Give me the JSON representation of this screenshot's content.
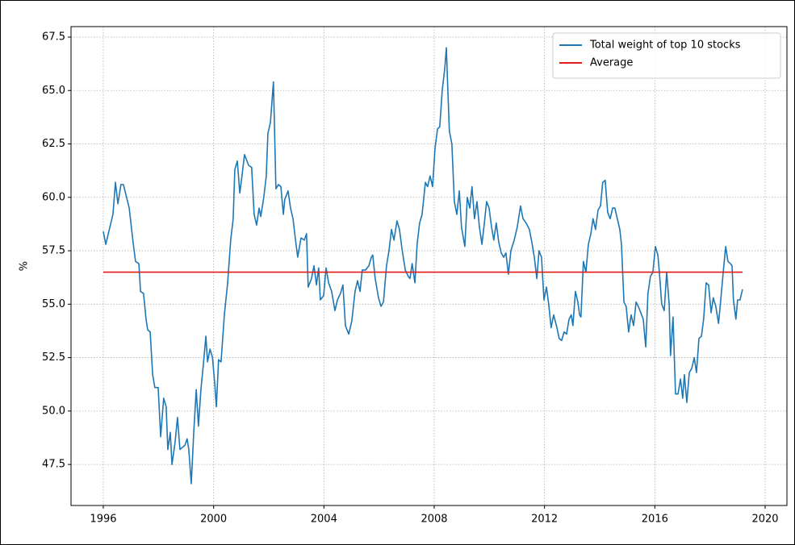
{
  "chart_data": {
    "type": "line",
    "y_label": "%",
    "xlim": [
      1994.83,
      2020.79
    ],
    "ylim": [
      45.58,
      67.99
    ],
    "xticks": [
      1996,
      2000,
      2004,
      2008,
      2012,
      2016,
      2020
    ],
    "yticks": [
      47.5,
      {
        "value": 50,
        "label": "50.0"
      },
      52.5,
      {
        "value": 55,
        "label": "55.0"
      },
      57.5,
      {
        "value": 60,
        "label": "60.0"
      },
      62.5,
      {
        "value": 65,
        "label": "65.0"
      },
      67.5
    ],
    "grid": true,
    "legend": "upper right",
    "series": [
      {
        "name": "Total weight of top 10 stocks",
        "color": "#1f77b4",
        "x": [
          1996.0,
          1996.09,
          1996.35,
          1996.44,
          1996.53,
          1996.64,
          1996.73,
          1996.94,
          1997.08,
          1997.17,
          1997.29,
          1997.35,
          1997.46,
          1997.55,
          1997.61,
          1997.7,
          1997.79,
          1997.87,
          1997.99,
          1998.08,
          1998.19,
          1998.28,
          1998.34,
          1998.43,
          1998.49,
          1998.6,
          1998.69,
          1998.78,
          1998.96,
          1999.04,
          1999.1,
          1999.19,
          1999.28,
          1999.37,
          1999.45,
          1999.54,
          1999.63,
          1999.72,
          1999.78,
          1999.87,
          1999.96,
          2000.04,
          2000.1,
          2000.18,
          2000.27,
          2000.39,
          2000.51,
          2000.62,
          2000.71,
          2000.77,
          2000.86,
          2000.95,
          2001.03,
          2001.12,
          2001.27,
          2001.38,
          2001.47,
          2001.56,
          2001.65,
          2001.71,
          2001.82,
          2001.91,
          2001.97,
          2002.06,
          2002.17,
          2002.26,
          2002.35,
          2002.44,
          2002.53,
          2002.58,
          2002.7,
          2002.79,
          2002.88,
          2002.97,
          2003.05,
          2003.17,
          2003.29,
          2003.37,
          2003.43,
          2003.55,
          2003.64,
          2003.73,
          2003.81,
          2003.87,
          2003.99,
          2004.08,
          2004.17,
          2004.28,
          2004.4,
          2004.49,
          2004.6,
          2004.69,
          2004.78,
          2004.9,
          2005.01,
          2005.13,
          2005.22,
          2005.31,
          2005.39,
          2005.51,
          2005.63,
          2005.72,
          2005.77,
          2005.86,
          2005.98,
          2006.07,
          2006.16,
          2006.27,
          2006.36,
          2006.45,
          2006.54,
          2006.65,
          2006.74,
          2006.83,
          2006.95,
          2007.06,
          2007.12,
          2007.2,
          2007.3,
          2007.38,
          2007.47,
          2007.56,
          2007.68,
          2007.76,
          2007.85,
          2007.94,
          2008.03,
          2008.12,
          2008.2,
          2008.29,
          2008.38,
          2008.44,
          2008.5,
          2008.55,
          2008.64,
          2008.73,
          2008.82,
          2008.91,
          2008.99,
          2009.11,
          2009.2,
          2009.29,
          2009.37,
          2009.46,
          2009.55,
          2009.64,
          2009.73,
          2009.81,
          2009.9,
          2009.99,
          2010.08,
          2010.16,
          2010.25,
          2010.34,
          2010.43,
          2010.52,
          2010.6,
          2010.69,
          2010.78,
          2010.9,
          2011.01,
          2011.13,
          2011.22,
          2011.33,
          2011.45,
          2011.54,
          2011.63,
          2011.72,
          2011.8,
          2011.89,
          2011.98,
          2012.07,
          2012.16,
          2012.24,
          2012.33,
          2012.45,
          2012.53,
          2012.62,
          2012.71,
          2012.8,
          2012.89,
          2012.97,
          2013.03,
          2013.12,
          2013.21,
          2013.27,
          2013.32,
          2013.41,
          2013.5,
          2013.59,
          2013.68,
          2013.76,
          2013.85,
          2013.94,
          2014.03,
          2014.11,
          2014.2,
          2014.29,
          2014.38,
          2014.47,
          2014.55,
          2014.64,
          2014.73,
          2014.79,
          2014.88,
          2014.96,
          2015.05,
          2015.14,
          2015.23,
          2015.32,
          2015.4,
          2015.49,
          2015.58,
          2015.67,
          2015.75,
          2015.84,
          2015.93,
          2016.02,
          2016.11,
          2016.17,
          2016.25,
          2016.34,
          2016.43,
          2016.52,
          2016.57,
          2016.66,
          2016.75,
          2016.84,
          2016.93,
          2017.01,
          2017.07,
          2017.16,
          2017.25,
          2017.34,
          2017.43,
          2017.51,
          2017.6,
          2017.69,
          2017.77,
          2017.86,
          2017.95,
          2018.04,
          2018.12,
          2018.21,
          2018.31,
          2018.39,
          2018.48,
          2018.57,
          2018.65,
          2018.74,
          2018.8,
          2018.85,
          2018.94,
          2019.0,
          2019.09,
          2019.18
        ],
        "values": [
          58.4,
          57.8,
          59.2,
          60.7,
          59.7,
          60.6,
          60.6,
          59.5,
          57.9,
          57.0,
          56.9,
          55.6,
          55.5,
          54.3,
          53.8,
          53.7,
          51.7,
          51.1,
          51.1,
          48.8,
          50.6,
          50.2,
          48.2,
          49.0,
          47.5,
          48.5,
          49.7,
          48.2,
          48.4,
          48.7,
          48.2,
          46.6,
          49.0,
          51.0,
          49.3,
          51.0,
          52.2,
          53.5,
          52.3,
          52.9,
          52.5,
          51.3,
          50.2,
          52.4,
          52.3,
          54.5,
          56.0,
          58.0,
          59.0,
          61.3,
          61.7,
          60.2,
          61.0,
          62.0,
          61.5,
          61.4,
          59.2,
          58.7,
          59.5,
          59.1,
          60.0,
          61.0,
          63.0,
          63.5,
          65.4,
          60.4,
          60.6,
          60.5,
          59.2,
          59.9,
          60.3,
          59.5,
          59.0,
          58.0,
          57.2,
          58.1,
          58.0,
          58.3,
          55.8,
          56.2,
          56.8,
          55.9,
          56.7,
          55.2,
          55.4,
          56.7,
          56.0,
          55.6,
          54.7,
          55.2,
          55.5,
          55.9,
          54.0,
          53.6,
          54.2,
          55.6,
          56.1,
          55.6,
          56.6,
          56.6,
          56.8,
          57.2,
          57.3,
          56.2,
          55.3,
          54.9,
          55.1,
          56.8,
          57.5,
          58.5,
          58.0,
          58.9,
          58.5,
          57.6,
          56.6,
          56.3,
          56.2,
          56.9,
          56.0,
          57.8,
          58.8,
          59.2,
          60.7,
          60.5,
          61.0,
          60.5,
          62.3,
          63.2,
          63.3,
          65.0,
          66.0,
          67.0,
          64.8,
          63.1,
          62.5,
          59.8,
          59.2,
          60.3,
          58.6,
          57.7,
          60.0,
          59.5,
          60.5,
          59.0,
          59.8,
          58.6,
          57.8,
          58.7,
          59.8,
          59.5,
          58.6,
          58.0,
          58.8,
          57.9,
          57.4,
          57.2,
          57.4,
          56.4,
          57.5,
          58.0,
          58.6,
          59.6,
          59.0,
          58.8,
          58.5,
          57.9,
          57.2,
          56.2,
          57.5,
          57.2,
          55.2,
          55.8,
          54.9,
          53.9,
          54.5,
          53.9,
          53.4,
          53.3,
          53.7,
          53.6,
          54.3,
          54.5,
          54.0,
          55.6,
          55.1,
          54.5,
          54.4,
          57.0,
          56.5,
          57.8,
          58.3,
          59.0,
          58.5,
          59.4,
          59.6,
          60.7,
          60.8,
          59.3,
          59.0,
          59.5,
          59.5,
          59.0,
          58.5,
          57.8,
          55.1,
          54.9,
          53.7,
          54.5,
          54.0,
          55.1,
          54.9,
          54.6,
          54.3,
          53.0,
          55.5,
          56.3,
          56.5,
          57.7,
          57.3,
          56.4,
          55.0,
          54.7,
          56.5,
          55.0,
          52.6,
          54.4,
          50.8,
          50.8,
          51.5,
          50.6,
          51.7,
          50.4,
          51.8,
          52.0,
          52.5,
          51.8,
          53.4,
          53.5,
          54.3,
          56.0,
          55.9,
          54.6,
          55.3,
          54.9,
          54.1,
          55.2,
          56.5,
          57.7,
          57.0,
          56.9,
          56.8,
          55.2,
          54.3,
          55.2,
          55.2,
          55.7
        ]
      },
      {
        "name": "Average",
        "color": "#e8191a",
        "x": [
          1996.0,
          2019.18
        ],
        "values": [
          56.5,
          56.5
        ]
      }
    ]
  }
}
